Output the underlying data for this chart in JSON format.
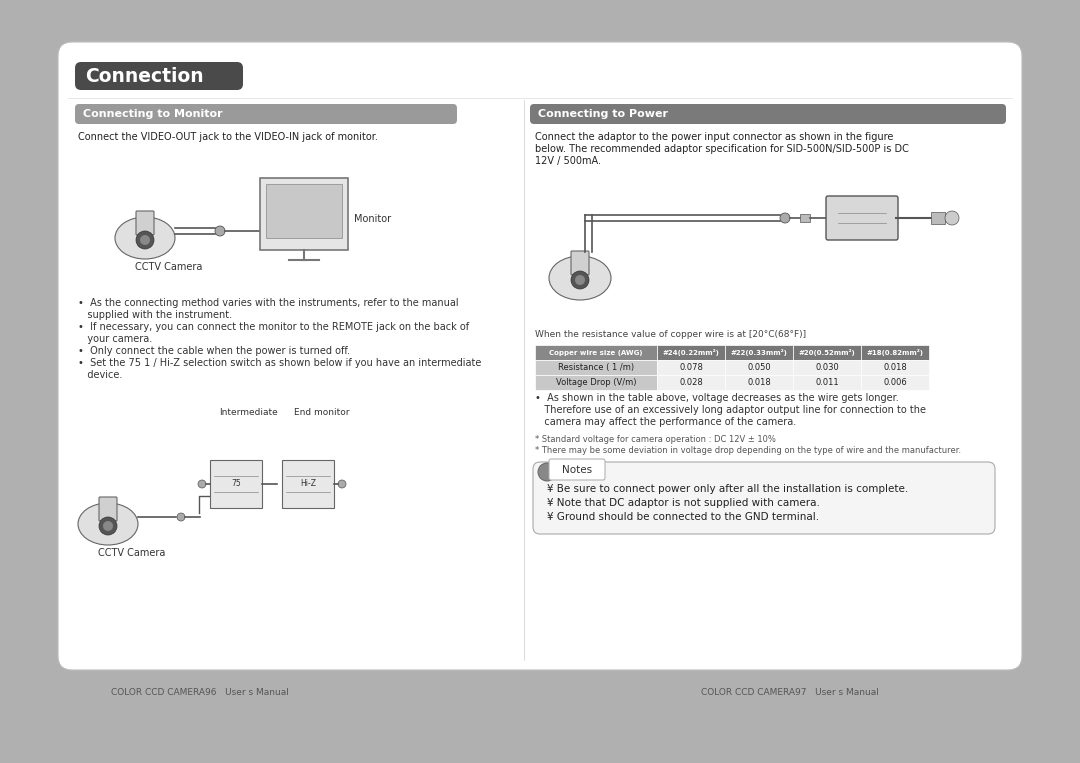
{
  "bg_color": "#b0b0b0",
  "card_color": "#ffffff",
  "title": "Connection",
  "title_bg": "#555555",
  "title_color": "#ffffff",
  "section_left_title": "Connecting to Monitor",
  "section_right_title": "Connecting to Power",
  "left_desc": "Connect the VIDEO-OUT jack to the VIDEO-IN jack of monitor.",
  "right_desc_line1": "Connect the adaptor to the power input connector as shown in the figure",
  "right_desc_line2": "below. The recommended adaptor specification for SID-500N/SID-500P is DC",
  "right_desc_line3": "12V / 500mA.",
  "left_bullets": [
    "•  As the connecting method varies with the instruments, refer to the manual",
    "   supplied with the instrument.",
    "•  If necessary, you can connect the monitor to the REMOTE jack on the back of",
    "   your camera.",
    "•  Only connect the cable when the power is turned off.",
    "•  Set the 75 1 / Hi-Z selection switch as shown below if you have an intermediate",
    "   device."
  ],
  "wire_caption": "When the resistance value of copper wire is at [20°C(68°F)]",
  "table_header": [
    "Copper wire size (AWG)",
    "#24(0.22mm²)",
    "#22(0.33mm²)",
    "#20(0.52mm²)",
    "#18(0.82mm²)"
  ],
  "table_row1": [
    "Resistance ( 1 /m)",
    "0.078",
    "0.050",
    "0.030",
    "0.018"
  ],
  "table_row2": [
    "Voltage Drop (V/m)",
    "0.028",
    "0.018",
    "0.011",
    "0.006"
  ],
  "right_bullet_lines": [
    "•  As shown in the table above, voltage decreases as the wire gets longer.",
    "   Therefore use of an excessively long adaptor output line for connection to the",
    "   camera may affect the performance of the camera."
  ],
  "footnote1": "* Standard voltage for camera operation : DC 12V ± 10%",
  "footnote2": "* There may be some deviation in voltage drop depending on the type of wire and the manufacturer.",
  "notes_title": "Notes",
  "notes_bullets": [
    "¥ Be sure to connect power only after all the installation is complete.",
    "¥ Note that DC adaptor is not supplied with camera.",
    "¥ Ground should be connected to the GND terminal."
  ],
  "footer_left": "COLOR CCD CAMERA96   User s Manual",
  "footer_right": "COLOR CCD CAMERA97   User s Manual",
  "intermediate_label": "Intermediate",
  "end_monitor_label": "End monitor",
  "cctv_label1": "CCTV Camera",
  "monitor_label": "Monitor",
  "cctv_label2": "CCTV Camera"
}
